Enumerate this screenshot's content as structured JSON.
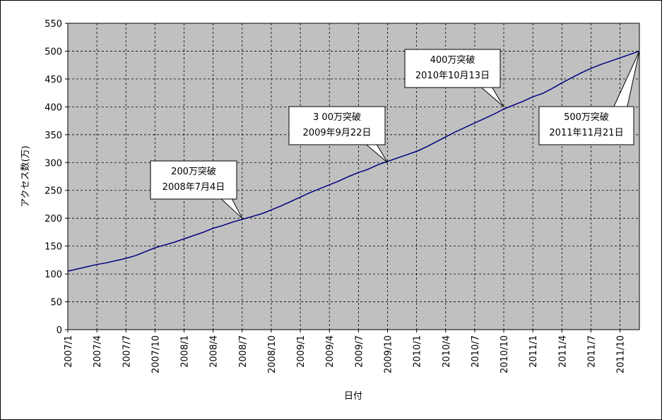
{
  "chart_data": {
    "type": "line",
    "x_label": "日付",
    "y_label": "アクセス数(万)",
    "x": [
      "2007/1",
      "2007/2",
      "2007/3",
      "2007/4",
      "2007/5",
      "2007/6",
      "2007/7",
      "2007/8",
      "2007/9",
      "2007/10",
      "2007/11",
      "2007/12",
      "2008/1",
      "2008/2",
      "2008/3",
      "2008/4",
      "2008/5",
      "2008/6",
      "2008/7",
      "2008/8",
      "2008/9",
      "2008/10",
      "2008/11",
      "2008/12",
      "2009/1",
      "2009/2",
      "2009/3",
      "2009/4",
      "2009/5",
      "2009/6",
      "2009/7",
      "2009/8",
      "2009/9",
      "2009/10",
      "2009/11",
      "2009/12",
      "2010/1",
      "2010/2",
      "2010/3",
      "2010/4",
      "2010/5",
      "2010/6",
      "2010/7",
      "2010/8",
      "2010/9",
      "2010/10",
      "2010/11",
      "2010/12",
      "2011/1",
      "2011/2",
      "2011/3",
      "2011/4",
      "2011/5",
      "2011/6",
      "2011/7",
      "2011/8",
      "2011/9",
      "2011/10",
      "2011/11",
      "2011/12"
    ],
    "series": [
      {
        "color": "#000080",
        "values": [
          105,
          109,
          113,
          117,
          120,
          124,
          128,
          133,
          140,
          147,
          152,
          157,
          163,
          169,
          175,
          182,
          187,
          193,
          198,
          203,
          208,
          215,
          222,
          230,
          238,
          246,
          253,
          260,
          267,
          275,
          282,
          288,
          296,
          302,
          308,
          314,
          320,
          328,
          337,
          346,
          355,
          363,
          371,
          379,
          387,
          396,
          403,
          410,
          418,
          424,
          433,
          443,
          452,
          461,
          469,
          476,
          482,
          488,
          494,
          500
        ]
      }
    ],
    "xticks": [
      "2007/1",
      "2007/4",
      "2007/7",
      "2007/10",
      "2008/1",
      "2008/4",
      "2008/7",
      "2008/10",
      "2009/1",
      "2009/4",
      "2009/7",
      "2009/10",
      "2010/1",
      "2010/4",
      "2010/7",
      "2010/10",
      "2011/1",
      "2011/4",
      "2011/7",
      "2011/10"
    ],
    "ylim": [
      0,
      550
    ],
    "yticks": [
      0,
      50,
      100,
      150,
      200,
      250,
      300,
      350,
      400,
      450,
      500,
      550
    ],
    "grid": true,
    "plot_background": "#c0c0c0",
    "annotations": [
      {
        "lines": [
          "200万突破",
          "2008年7月4日"
        ],
        "x": "2008/7",
        "y": 200
      },
      {
        "lines": [
          "3 00万突破",
          "2009年9月22日"
        ],
        "x": "2009/10",
        "y": 300
      },
      {
        "lines": [
          "400万突破",
          "2010年10月13日"
        ],
        "x": "2010/10",
        "y": 400
      },
      {
        "lines": [
          "500万突破",
          "2011年11月21日"
        ],
        "x": "2011/12",
        "y": 500
      }
    ]
  }
}
